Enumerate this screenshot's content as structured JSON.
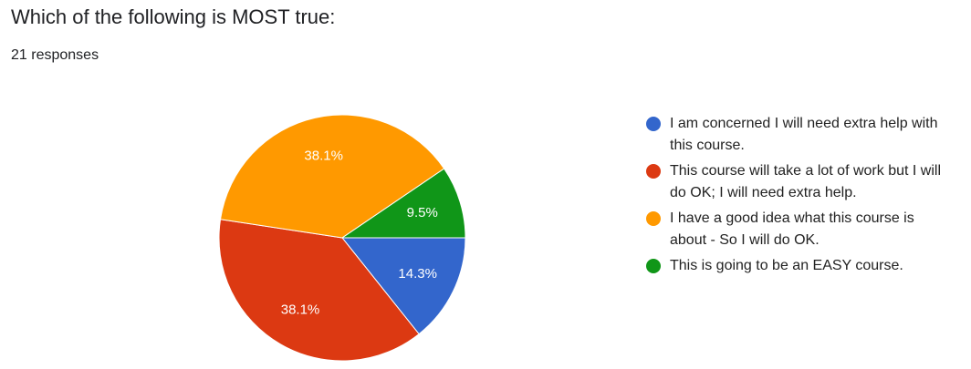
{
  "chart_data": {
    "type": "pie",
    "title": "Which of the following is MOST true:",
    "subtitle": "21 responses",
    "categories": [
      "I am concerned I will need extra help with this course.",
      "This course will take a lot of work but I will do OK; I will need extra help.",
      "I have a good idea what this course is about - So I will do OK.",
      "This is going to be an EASY course."
    ],
    "values": [
      14.3,
      38.1,
      38.1,
      9.5
    ],
    "value_labels": [
      "14.3%",
      "38.1%",
      "38.1%",
      "9.5%"
    ],
    "colors": [
      "#3366cc",
      "#dc3912",
      "#ff9900",
      "#109618"
    ],
    "legend": "right"
  }
}
